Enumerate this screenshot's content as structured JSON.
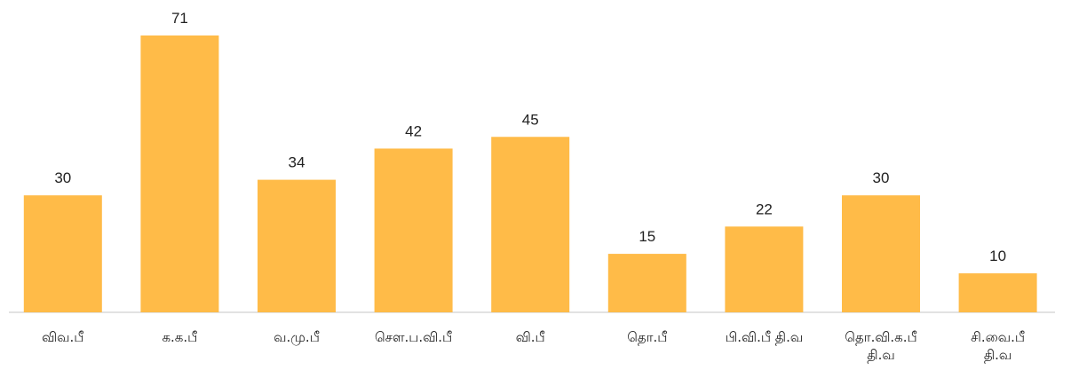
{
  "chart_data": {
    "type": "bar",
    "categories": [
      "விவ.பீ",
      "க.க.பீ",
      "வ.மு.பீ",
      "சௌ.ப.வி.பீ",
      "வி.பீ",
      "தொ.பீ",
      "பி.வி.பீ தி.வ",
      "தொ.வி.க.பீ தி.வ",
      "சி.வை.பீ தி.வ"
    ],
    "values": [
      30,
      71,
      34,
      42,
      45,
      15,
      22,
      30,
      10
    ],
    "color": "#ffbb48"
  }
}
